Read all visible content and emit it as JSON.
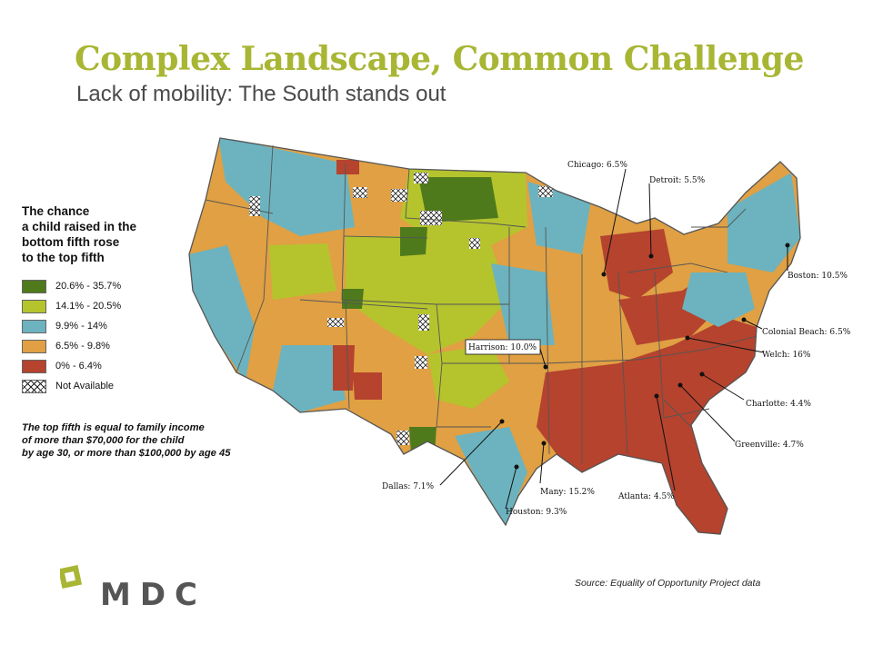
{
  "slide": {
    "title": "Complex Landscape, Common Challenge",
    "subtitle": "Lack of mobility: The South stands out"
  },
  "legend": {
    "heading_lines": [
      "The chance",
      "a child raised in the",
      "bottom fifth rose",
      "to the top fifth"
    ],
    "items": [
      {
        "label": "20.6% - 35.7%",
        "color": "#4f7a1c"
      },
      {
        "label": "14.1% - 20.5%",
        "color": "#b5c42d"
      },
      {
        "label": "9.9% - 14%",
        "color": "#6cb3bf"
      },
      {
        "label": "6.5% - 9.8%",
        "color": "#e0a043"
      },
      {
        "label": "0% - 6.4%",
        "color": "#b5432e"
      },
      {
        "label": "Not Available",
        "color": "hatch"
      }
    ]
  },
  "note": {
    "lines": [
      "The top fifth is equal to family income",
      "of more than $70,000 for the child",
      "by age 30, or more than $100,000 by age 45"
    ]
  },
  "map": {
    "callouts": [
      {
        "label": "Chicago: 6.5%"
      },
      {
        "label": "Detroit: 5.5%"
      },
      {
        "label": "Boston: 10.5%"
      },
      {
        "label": "Colonial Beach: 6.5%"
      },
      {
        "label": "Welch: 16%"
      },
      {
        "label": "Charlotte: 4.4%"
      },
      {
        "label": "Greenville: 4.7%"
      },
      {
        "label": "Atlanta: 4.5%"
      },
      {
        "label": "Many: 15.2%"
      },
      {
        "label": "Houston: 9.3%"
      },
      {
        "label": "Dallas: 7.1%"
      },
      {
        "label": "Harrison: 10.0%"
      }
    ]
  },
  "footer": {
    "source": "Source: Equality of Opportunity Project data",
    "logo_text": "MDC",
    "logo_color": "#a8b634",
    "logo_text_color": "#555555"
  }
}
